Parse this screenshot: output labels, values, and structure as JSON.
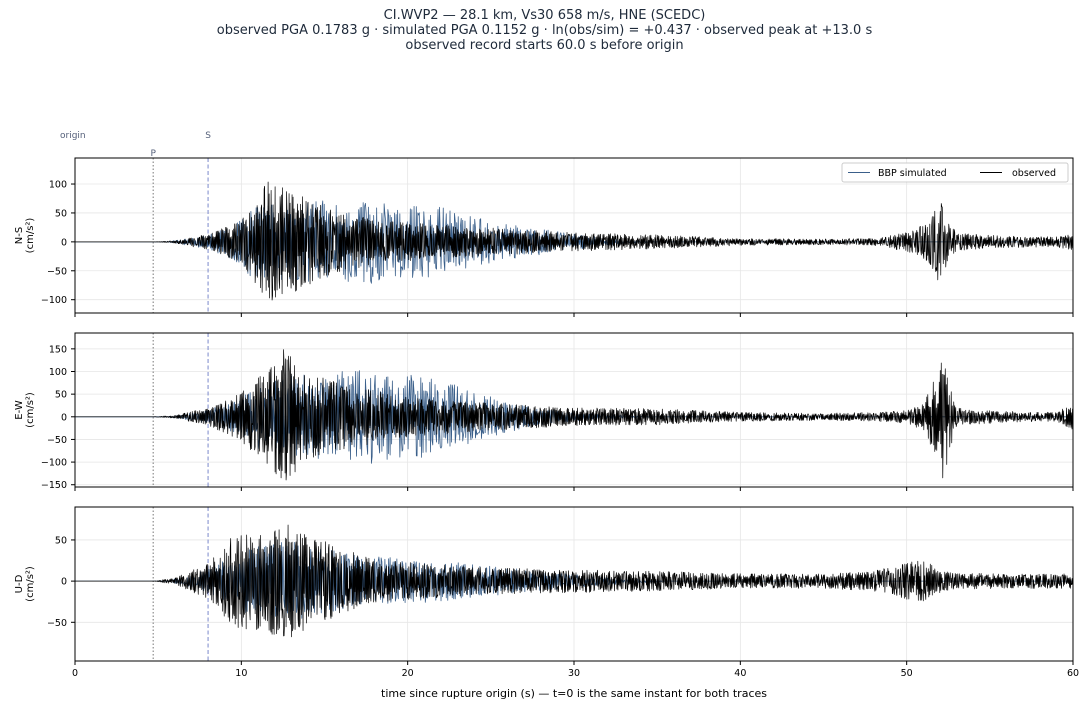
{
  "title_lines": [
    "CI.WVP2  —  28.1 km, Vs30 658 m/s, HNE (SCEDC)",
    "observed PGA 0.1783 g   ·   simulated PGA 0.1152 g   ·   ln(obs/sim) = +0.437   ·   observed peak at +13.0 s",
    "observed record starts 60.0 s before origin"
  ],
  "colors": {
    "observed": "#000000",
    "simulated": "#3a5f8a",
    "p_line": "#777777",
    "s_line": "#7a88cc",
    "grid": "#e6e6e6",
    "marker_text": "#55607a"
  },
  "chart_data": {
    "type": "line",
    "xlabel": "time since rupture origin (s)   —   t=0 is the same instant for both traces",
    "xlim": [
      0,
      60
    ],
    "xticks": [
      0,
      10,
      20,
      30,
      40,
      50,
      60
    ],
    "legend": {
      "placement": "top-right",
      "entries": [
        "BBP simulated",
        "observed"
      ]
    },
    "markers": [
      {
        "label": "origin",
        "t": 0
      },
      {
        "label": "P",
        "t": 4.7
      },
      {
        "label": "S",
        "t": 8.0
      }
    ],
    "grid": true,
    "panels": [
      {
        "ylabel_lines": [
          "N-S",
          "(cm/s²)"
        ],
        "ylim": [
          -123,
          145
        ],
        "yticks": [
          -100,
          -50,
          0,
          50,
          100
        ],
        "series": [
          {
            "name": "BBP simulated",
            "envelope": [
              [
                5.5,
                0
              ],
              [
                8,
                12
              ],
              [
                9.5,
                30
              ],
              [
                10.5,
                60
              ],
              [
                12,
                65
              ],
              [
                14,
                70
              ],
              [
                16,
                72
              ],
              [
                18,
                72
              ],
              [
                20,
                62
              ],
              [
                22,
                60
              ],
              [
                23,
                50
              ],
              [
                26,
                30
              ],
              [
                29,
                18
              ],
              [
                31,
                10
              ],
              [
                33,
                4
              ],
              [
                35,
                0
              ]
            ]
          },
          {
            "name": "observed",
            "envelope": [
              [
                4.7,
                0
              ],
              [
                6,
                2
              ],
              [
                8,
                14
              ],
              [
                9.5,
                30
              ],
              [
                10.5,
                55
              ],
              [
                11.5,
                105
              ],
              [
                13,
                90
              ],
              [
                15,
                60
              ],
              [
                18,
                38
              ],
              [
                20,
                33
              ],
              [
                25,
                24
              ],
              [
                30,
                16
              ],
              [
                35,
                12
              ],
              [
                40,
                6
              ],
              [
                45,
                5
              ],
              [
                48,
                6
              ],
              [
                49.5,
                14
              ],
              [
                50.5,
                20
              ],
              [
                51.5,
                45
              ],
              [
                52,
                75
              ],
              [
                52.5,
                40
              ],
              [
                53,
                15
              ],
              [
                56,
                10
              ],
              [
                59,
                9
              ],
              [
                60,
                14
              ]
            ]
          }
        ]
      },
      {
        "ylabel_lines": [
          "E-W",
          "(cm/s²)"
        ],
        "ylim": [
          -155,
          185
        ],
        "yticks": [
          -150,
          -100,
          -50,
          0,
          50,
          100,
          150
        ],
        "series": [
          {
            "name": "BBP simulated",
            "envelope": [
              [
                5.5,
                0
              ],
              [
                8,
                14
              ],
              [
                9.5,
                40
              ],
              [
                11,
                70
              ],
              [
                13,
                90
              ],
              [
                15,
                100
              ],
              [
                17,
                105
              ],
              [
                19,
                100
              ],
              [
                21,
                90
              ],
              [
                23,
                70
              ],
              [
                25,
                45
              ],
              [
                27,
                25
              ],
              [
                30,
                10
              ],
              [
                33,
                3
              ],
              [
                35,
                0
              ]
            ]
          },
          {
            "name": "observed",
            "envelope": [
              [
                4.7,
                0
              ],
              [
                6,
                3
              ],
              [
                8,
                20
              ],
              [
                9.5,
                45
              ],
              [
                11,
                85
              ],
              [
                12.5,
                150
              ],
              [
                14,
                95
              ],
              [
                16,
                75
              ],
              [
                18,
                60
              ],
              [
                20,
                45
              ],
              [
                25,
                30
              ],
              [
                30,
                20
              ],
              [
                35,
                18
              ],
              [
                40,
                10
              ],
              [
                45,
                8
              ],
              [
                48,
                10
              ],
              [
                50,
                14
              ],
              [
                51,
                30
              ],
              [
                51.8,
                95
              ],
              [
                52.1,
                155
              ],
              [
                52.6,
                80
              ],
              [
                53,
                20
              ],
              [
                56,
                12
              ],
              [
                59,
                10
              ],
              [
                60,
                30
              ]
            ]
          }
        ]
      },
      {
        "ylabel_lines": [
          "U-D",
          "(cm/s²)"
        ],
        "ylim": [
          -97,
          90
        ],
        "yticks": [
          -50,
          0,
          50
        ],
        "series": [
          {
            "name": "BBP simulated",
            "envelope": [
              [
                5.5,
                0
              ],
              [
                8,
                14
              ],
              [
                9.5,
                32
              ],
              [
                11,
                45
              ],
              [
                13,
                48
              ],
              [
                15,
                40
              ],
              [
                18,
                30
              ],
              [
                22,
                25
              ],
              [
                25,
                18
              ],
              [
                28,
                12
              ],
              [
                31,
                6
              ],
              [
                34,
                2
              ],
              [
                36,
                0
              ]
            ]
          },
          {
            "name": "observed",
            "envelope": [
              [
                4.7,
                0
              ],
              [
                6,
                4
              ],
              [
                8,
                22
              ],
              [
                9.5,
                55
              ],
              [
                11,
                62
              ],
              [
                13,
                70
              ],
              [
                14,
                58
              ],
              [
                16,
                40
              ],
              [
                18,
                26
              ],
              [
                22,
                20
              ],
              [
                25,
                16
              ],
              [
                30,
                14
              ],
              [
                35,
                12
              ],
              [
                40,
                9
              ],
              [
                45,
                9
              ],
              [
                48,
                12
              ],
              [
                50,
                22
              ],
              [
                51,
                26
              ],
              [
                52,
                14
              ],
              [
                53,
                10
              ],
              [
                56,
                9
              ],
              [
                60,
                9
              ]
            ]
          }
        ]
      }
    ]
  }
}
